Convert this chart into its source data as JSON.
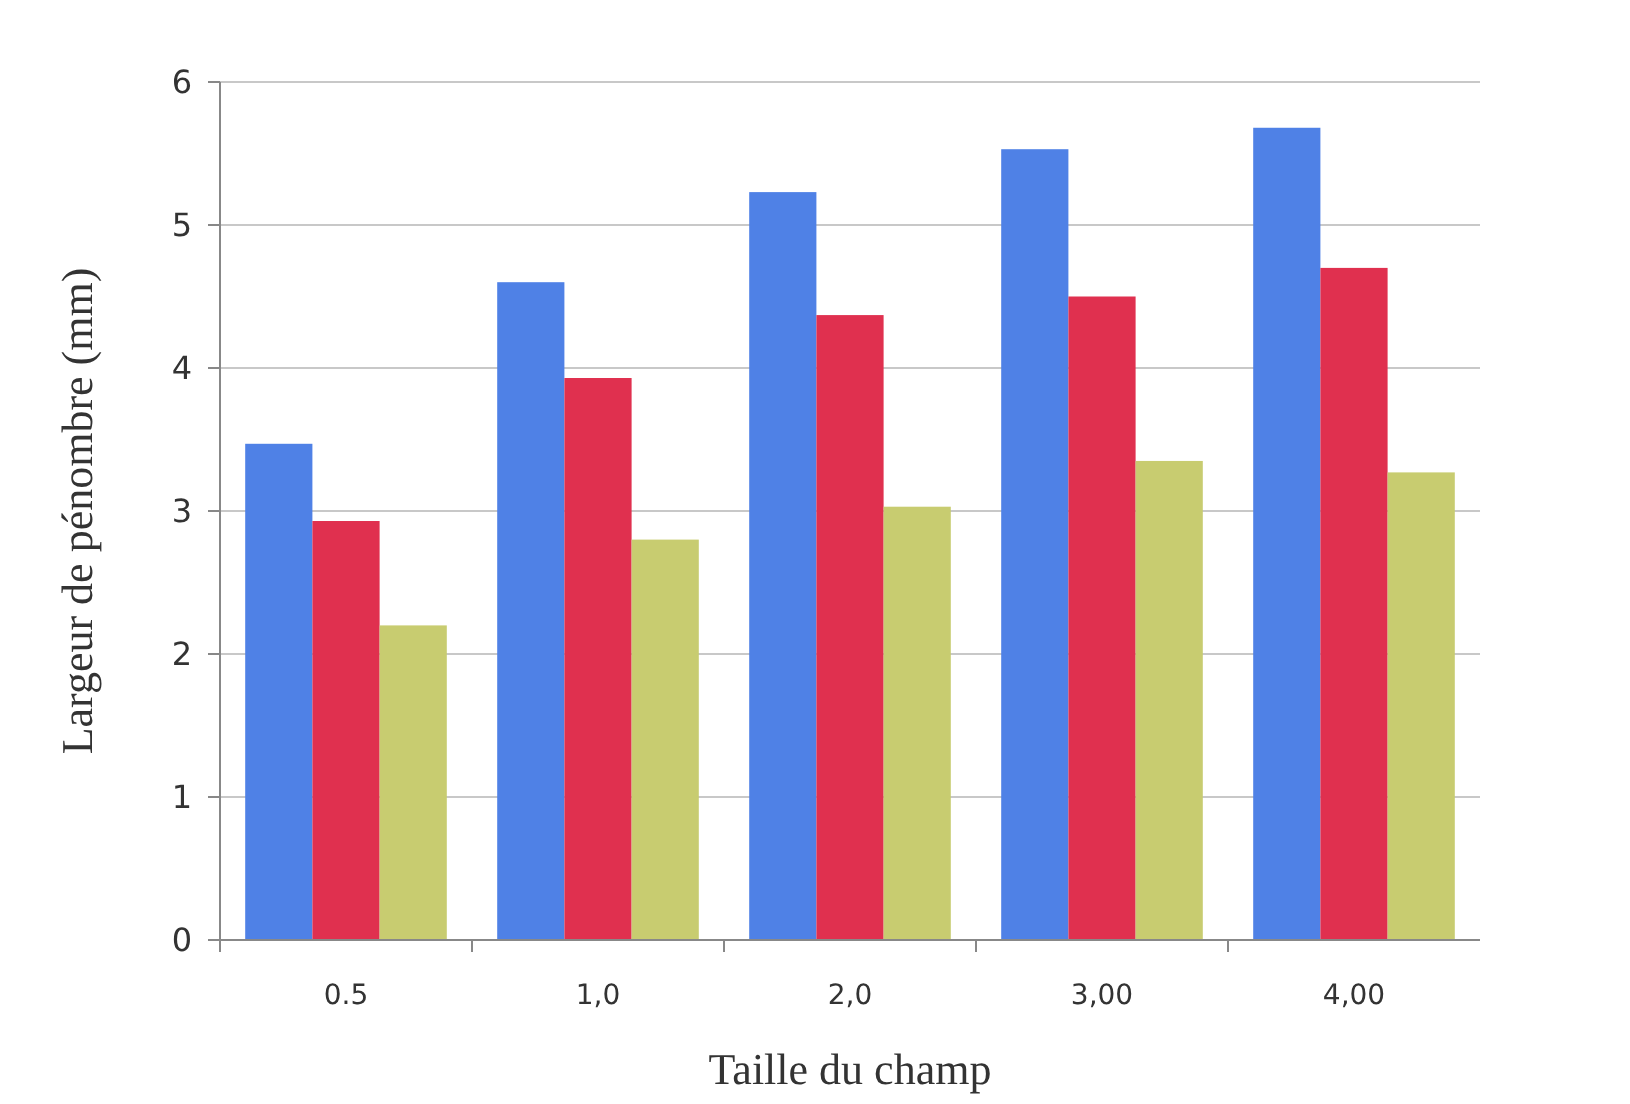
{
  "chart_data": {
    "type": "bar",
    "xlabel": "Taille du champ",
    "ylabel": "Largeur de pénombre (mm)",
    "categories": [
      "0.5",
      "1,0",
      "2,0",
      "3,00",
      "4,00"
    ],
    "series": [
      {
        "color": "#4f81e6",
        "values": [
          3.47,
          4.6,
          5.23,
          5.53,
          5.68
        ]
      },
      {
        "color": "#e0304f",
        "values": [
          2.93,
          3.93,
          4.37,
          4.5,
          4.7
        ]
      },
      {
        "color": "#c8cc70",
        "values": [
          2.2,
          2.8,
          3.03,
          3.35,
          3.27
        ]
      }
    ],
    "ylim": [
      0,
      6
    ],
    "yticks": [
      0,
      1,
      2,
      3,
      4,
      5,
      6
    ],
    "grid": "y"
  }
}
